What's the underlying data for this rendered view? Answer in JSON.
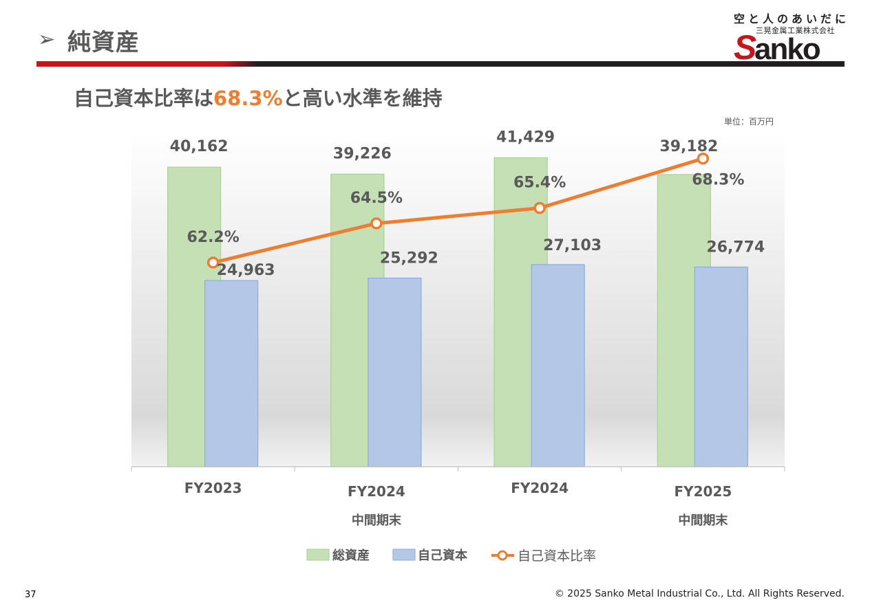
{
  "header": {
    "arrow": "➢",
    "title": "純資産"
  },
  "logo": {
    "slogan": "空と人のあいだに",
    "company": "三晃金属工業株式会社",
    "brand": "Sanko"
  },
  "subtitle": {
    "prefix": "自己資本比率は",
    "highlight": "68.3%",
    "suffix": "と高い水準を維持"
  },
  "unit": "単位：百万円",
  "colors": {
    "total_assets": "#c5e0b4",
    "total_assets_border": "#a9d18e",
    "equity": "#b4c7e7",
    "equity_border": "#8faadc",
    "ratio": "#ed7d31",
    "text": "#595959"
  },
  "chart_data": {
    "type": "bar",
    "categories": [
      {
        "line1": "FY2023",
        "line2": ""
      },
      {
        "line1": "FY2024",
        "line2": "中間期末"
      },
      {
        "line1": "FY2024",
        "line2": ""
      },
      {
        "line1": "FY2025",
        "line2": "中間期末"
      }
    ],
    "series": [
      {
        "name": "総資産",
        "type": "bar",
        "values": [
          40162,
          39226,
          41429,
          39182
        ],
        "labels": [
          "40,162",
          "39,226",
          "41,429",
          "39,182"
        ]
      },
      {
        "name": "自己資本",
        "type": "bar",
        "values": [
          24963,
          25292,
          27103,
          26774
        ],
        "labels": [
          "24,963",
          "25,292",
          "27,103",
          "26,774"
        ]
      },
      {
        "name": "自己資本比率",
        "type": "line",
        "values": [
          62.2,
          64.5,
          65.4,
          68.3
        ],
        "labels": [
          "62.2%",
          "64.5%",
          "65.4%",
          "68.3%"
        ]
      }
    ],
    "ylim": [
      0,
      45000
    ],
    "y2lim": [
      50,
      70
    ]
  },
  "footer": {
    "page": "37",
    "copyright": "© 2025 Sanko Metal Industrial Co., Ltd. All Rights Reserved."
  }
}
